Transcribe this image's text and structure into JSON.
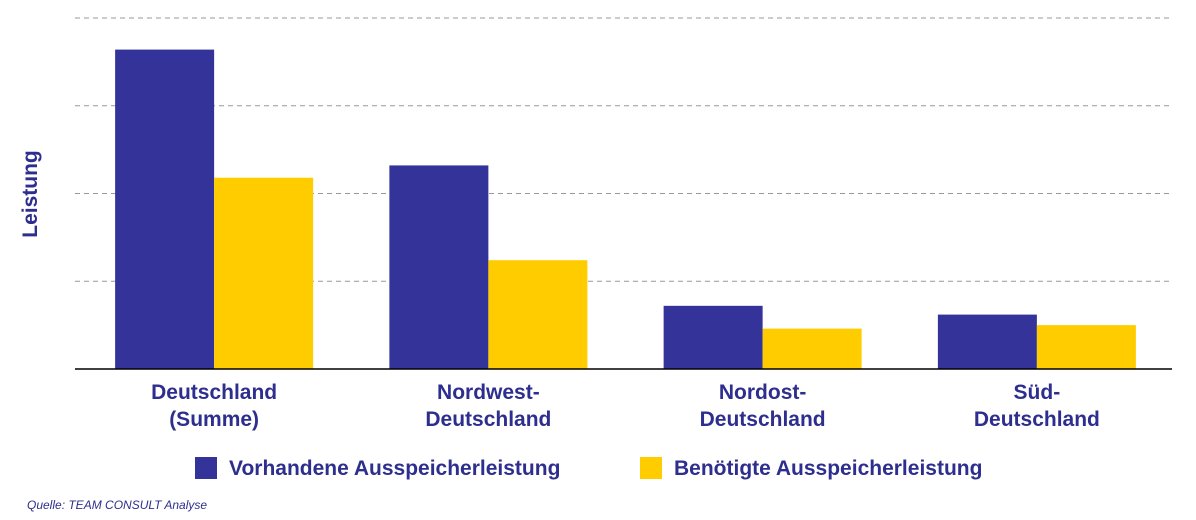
{
  "colors": {
    "series1": "#333399",
    "series2": "#FFCC00",
    "text": "#2E2E8F",
    "grid": "#999999",
    "axis": "#000000"
  },
  "chart_data": {
    "type": "bar",
    "title": "",
    "xlabel": "",
    "ylabel": "Leistung",
    "ylim": [
      0,
      100
    ],
    "grid": true,
    "y_tick_labels_shown": false,
    "legend_position": "bottom",
    "categories": [
      [
        "Deutschland",
        "(Summe)"
      ],
      [
        "Nordwest-",
        "Deutschland"
      ],
      [
        "Nordost-",
        "Deutschland"
      ],
      [
        "Süd-",
        "Deutschland"
      ]
    ],
    "series": [
      {
        "name": "Vorhandene Ausspeicherleistung",
        "values": [
          91,
          58,
          18,
          15.5
        ]
      },
      {
        "name": "Benötigte Ausspeicherleistung",
        "values": [
          54.5,
          31,
          11.5,
          12.5
        ]
      }
    ]
  },
  "source": "Quelle: TEAM CONSULT Analyse"
}
